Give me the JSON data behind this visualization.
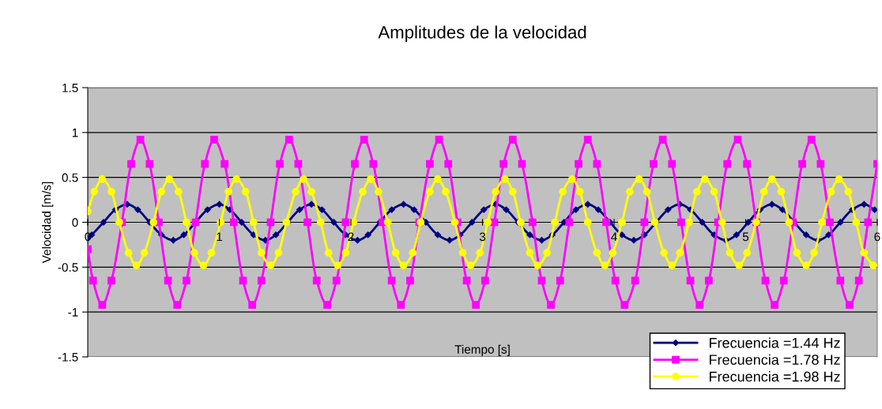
{
  "chart_data": {
    "type": "line",
    "title": "Amplitudes de la velocidad",
    "xlabel": "Tiempo [s]",
    "ylabel": "Velocidad [m/s]",
    "xlim": [
      0,
      6
    ],
    "xticks": [
      0,
      1,
      2,
      3,
      4,
      5,
      6
    ],
    "ylim": [
      -1.5,
      1.5
    ],
    "yticks": [
      -1.5,
      -1,
      -0.5,
      0,
      0.5,
      1,
      1.5
    ],
    "grid": "y",
    "legend": "bottom right",
    "line_style": "solid",
    "series": [
      {
        "name": "Frecuencia =1.44 Hz",
        "color": "#000080",
        "marker": "diamond",
        "x": [
          0,
          0.03,
          0.12,
          0.21,
          0.3,
          0.38,
          0.47,
          0.56,
          0.65,
          0.73,
          0.82,
          0.91,
          1.0,
          1.08,
          1.17,
          1.26,
          1.35,
          1.43,
          1.52,
          1.61,
          1.7,
          1.78,
          1.87,
          1.96,
          2.05,
          2.13,
          2.22,
          2.31,
          2.4,
          2.48,
          2.57,
          2.66,
          2.75,
          2.83,
          2.92,
          3.01,
          3.1,
          3.18,
          3.27,
          3.36,
          3.45,
          3.53,
          3.62,
          3.71,
          3.8,
          3.88,
          3.97,
          4.06,
          4.15,
          4.23,
          4.32,
          4.41,
          4.5,
          4.58,
          4.67,
          4.76,
          4.85,
          4.93,
          5.02,
          5.11,
          5.2,
          5.28,
          5.37,
          5.46,
          5.55,
          5.63,
          5.72,
          5.81,
          5.9,
          5.98
        ],
        "values": [
          -0.18,
          -0.14,
          0,
          0.14,
          0.2,
          0.14,
          0,
          -0.14,
          -0.2,
          -0.14,
          0,
          0.14,
          0.2,
          0.14,
          0,
          -0.14,
          -0.2,
          -0.14,
          0,
          0.14,
          0.2,
          0.14,
          0,
          -0.14,
          -0.2,
          -0.14,
          0,
          0.14,
          0.2,
          0.14,
          0,
          -0.14,
          -0.2,
          -0.14,
          0,
          0.14,
          0.2,
          0.14,
          0,
          -0.14,
          -0.2,
          -0.14,
          0,
          0.14,
          0.2,
          0.14,
          0,
          -0.14,
          -0.2,
          -0.14,
          0,
          0.14,
          0.2,
          0.14,
          0,
          -0.14,
          -0.2,
          -0.14,
          0,
          0.14,
          0.2,
          0.14,
          0,
          -0.14,
          -0.2,
          -0.14,
          0,
          0.14,
          0.2,
          0.14
        ]
      },
      {
        "name": "Frecuencia =1.78 Hz",
        "color": "#ff00ff",
        "marker": "square",
        "x": [
          0,
          0.04,
          0.11,
          0.18,
          0.26,
          0.33,
          0.4,
          0.47,
          0.54,
          0.61,
          0.68,
          0.75,
          0.82,
          0.89,
          0.96,
          1.04,
          1.11,
          1.18,
          1.25,
          1.32,
          1.39,
          1.46,
          1.53,
          1.6,
          1.67,
          1.74,
          1.82,
          1.89,
          1.96,
          2.03,
          2.1,
          2.17,
          2.24,
          2.31,
          2.38,
          2.45,
          2.52,
          2.6,
          2.67,
          2.74,
          2.81,
          2.88,
          2.95,
          3.02,
          3.09,
          3.16,
          3.23,
          3.3,
          3.38,
          3.45,
          3.52,
          3.59,
          3.66,
          3.73,
          3.8,
          3.87,
          3.94,
          4.01,
          4.08,
          4.16,
          4.23,
          4.3,
          4.37,
          4.44,
          4.51,
          4.58,
          4.65,
          4.72,
          4.79,
          4.86,
          4.94,
          5.01,
          5.08,
          5.15,
          5.22,
          5.29,
          5.36,
          5.43,
          5.5,
          5.57,
          5.64,
          5.72,
          5.79,
          5.86,
          5.93,
          6.0
        ],
        "values": [
          -0.3,
          -0.65,
          -0.92,
          -0.65,
          0,
          0.65,
          0.92,
          0.65,
          0,
          -0.65,
          -0.92,
          -0.65,
          0,
          0.65,
          0.92,
          0.65,
          0,
          -0.65,
          -0.92,
          -0.65,
          0,
          0.65,
          0.92,
          0.65,
          0,
          -0.65,
          -0.92,
          -0.65,
          0,
          0.65,
          0.92,
          0.65,
          0,
          -0.65,
          -0.92,
          -0.65,
          0,
          0.65,
          0.92,
          0.65,
          0,
          -0.65,
          -0.92,
          -0.65,
          0,
          0.65,
          0.92,
          0.65,
          0,
          -0.65,
          -0.92,
          -0.65,
          0,
          0.65,
          0.92,
          0.65,
          0,
          -0.65,
          -0.92,
          -0.65,
          0,
          0.65,
          0.92,
          0.65,
          0,
          -0.65,
          -0.92,
          -0.65,
          0,
          0.65,
          0.92,
          0.65,
          0,
          -0.65,
          -0.92,
          -0.65,
          0,
          0.65,
          0.92,
          0.65,
          0,
          -0.65,
          -0.92,
          -0.65,
          0,
          0.65
        ]
      },
      {
        "name": "Frecuencia =1.98 Hz",
        "color": "#ffff00",
        "marker": "circle",
        "x": [
          0,
          0.05,
          0.11,
          0.18,
          0.24,
          0.31,
          0.37,
          0.43,
          0.5,
          0.56,
          0.62,
          0.69,
          0.75,
          0.81,
          0.88,
          0.94,
          1.01,
          1.07,
          1.13,
          1.2,
          1.26,
          1.32,
          1.39,
          1.45,
          1.51,
          1.58,
          1.64,
          1.7,
          1.77,
          1.83,
          1.9,
          1.96,
          2.02,
          2.09,
          2.15,
          2.21,
          2.28,
          2.34,
          2.4,
          2.47,
          2.53,
          2.6,
          2.66,
          2.72,
          2.79,
          2.85,
          2.91,
          2.98,
          3.04,
          3.1,
          3.17,
          3.23,
          3.29,
          3.36,
          3.42,
          3.49,
          3.55,
          3.61,
          3.68,
          3.74,
          3.8,
          3.87,
          3.93,
          3.99,
          4.06,
          4.12,
          4.19,
          4.25,
          4.31,
          4.38,
          4.44,
          4.5,
          4.57,
          4.63,
          4.69,
          4.76,
          4.82,
          4.88,
          4.95,
          5.01,
          5.08,
          5.14,
          5.2,
          5.27,
          5.33,
          5.39,
          5.46,
          5.52,
          5.58,
          5.65,
          5.71,
          5.78,
          5.84,
          5.9,
          5.97
        ],
        "values": [
          0.12,
          0.34,
          0.48,
          0.34,
          0,
          -0.34,
          -0.48,
          -0.34,
          0,
          0.34,
          0.48,
          0.34,
          0,
          -0.34,
          -0.48,
          -0.34,
          0,
          0.34,
          0.48,
          0.34,
          0,
          -0.34,
          -0.48,
          -0.34,
          0,
          0.34,
          0.48,
          0.34,
          0,
          -0.34,
          -0.48,
          -0.34,
          0,
          0.34,
          0.48,
          0.34,
          0,
          -0.34,
          -0.48,
          -0.34,
          0,
          0.34,
          0.48,
          0.34,
          0,
          -0.34,
          -0.48,
          -0.34,
          0,
          0.34,
          0.48,
          0.34,
          0,
          -0.34,
          -0.48,
          -0.34,
          0,
          0.34,
          0.48,
          0.34,
          0,
          -0.34,
          -0.48,
          -0.34,
          0,
          0.34,
          0.48,
          0.34,
          0,
          -0.34,
          -0.48,
          -0.34,
          0,
          0.34,
          0.48,
          0.34,
          0,
          -0.34,
          -0.48,
          -0.34,
          0,
          0.34,
          0.48,
          0.34,
          0,
          -0.34,
          -0.48,
          -0.34,
          0,
          0.34,
          0.48,
          0.34,
          0,
          -0.34,
          -0.48
        ]
      }
    ]
  }
}
